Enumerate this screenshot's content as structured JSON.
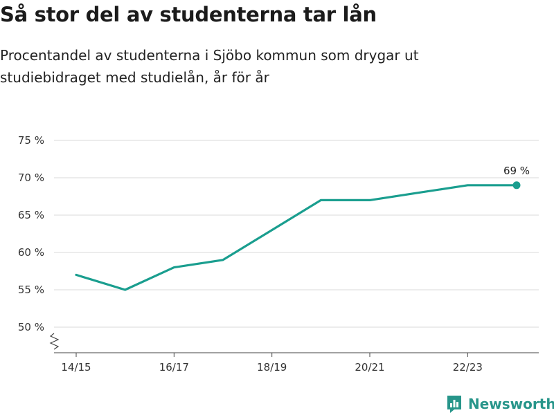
{
  "header": {
    "title": "Så stor del av studenterna tar lån",
    "subtitle": "Procentandel av studenterna i Sjöbo kommun som drygar ut studiebidraget med studielån, år för år"
  },
  "chart_data": {
    "type": "line",
    "x": [
      "14/15",
      "15/16",
      "16/17",
      "17/18",
      "18/19",
      "19/20",
      "20/21",
      "21/22",
      "22/23",
      "23/24"
    ],
    "y_ticks": [
      "50 %",
      "55 %",
      "60 %",
      "65 %",
      "70 %",
      "75 %"
    ],
    "x_tick_labels": [
      "14/15",
      "16/17",
      "18/19",
      "20/21",
      "22/23"
    ],
    "series": [
      {
        "values": [
          57,
          55,
          58,
          59,
          63,
          67,
          67,
          68,
          69,
          69
        ]
      }
    ],
    "ylim": [
      50,
      75
    ],
    "axis_break": true,
    "grid": true,
    "last_point_label": "69 %",
    "line_color": "#1a9e8f"
  },
  "brand": {
    "name": "Newsworthy",
    "icon": "newsworthy-logo-icon",
    "color": "#27958a"
  }
}
